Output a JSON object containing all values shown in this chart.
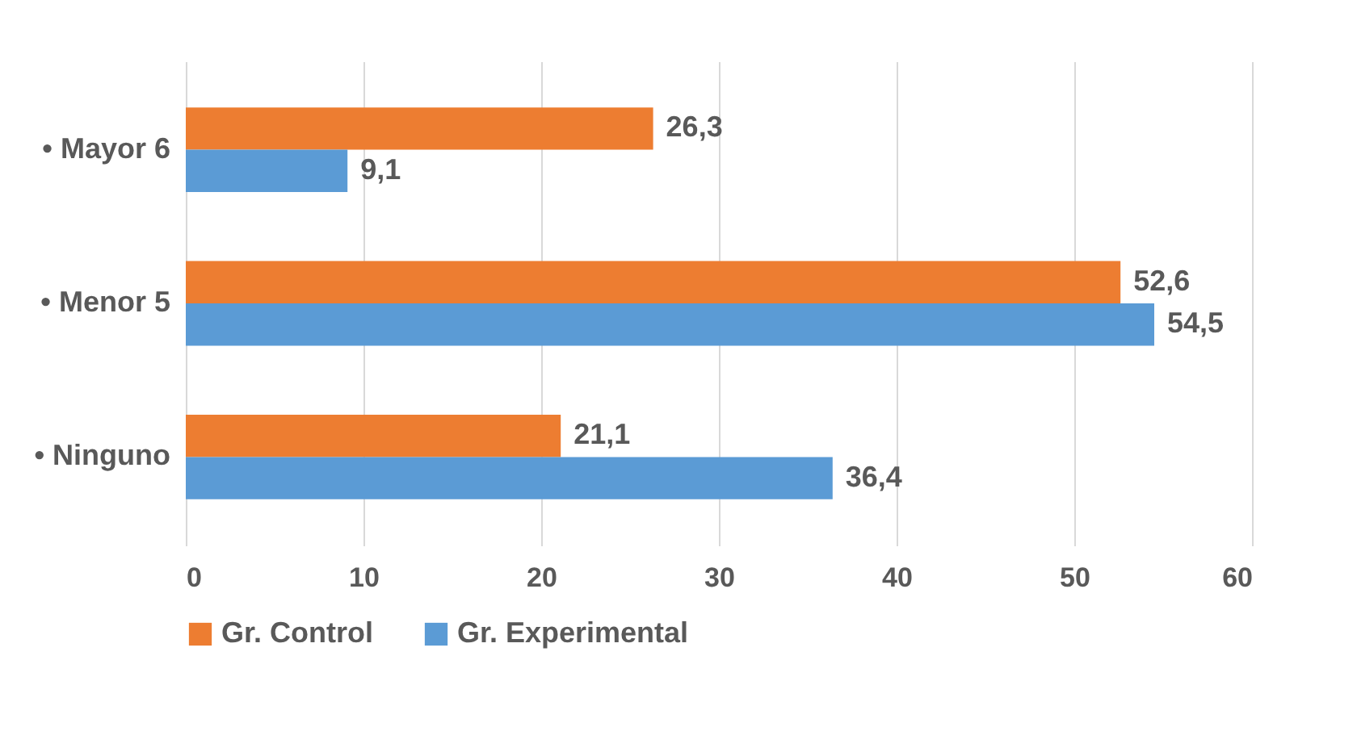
{
  "chart_data": {
    "type": "bar",
    "orientation": "horizontal",
    "categories": [
      "• Mayor 6",
      "• Menor 5",
      "• Ninguno"
    ],
    "series": [
      {
        "name": "Gr. Control",
        "color": "#ed7d31",
        "values": [
          26.3,
          52.6,
          21.1
        ],
        "value_labels": [
          "26,3",
          "52,6",
          "21,1"
        ]
      },
      {
        "name": "Gr. Experimental",
        "color": "#5b9bd5",
        "values": [
          9.1,
          54.5,
          36.4
        ],
        "value_labels": [
          "9,1",
          "54,5",
          "36,4"
        ]
      }
    ],
    "xlim": [
      0,
      60
    ],
    "xticks": [
      0,
      10,
      20,
      30,
      40,
      50,
      60
    ],
    "grid": "x",
    "legend": "bottom"
  }
}
